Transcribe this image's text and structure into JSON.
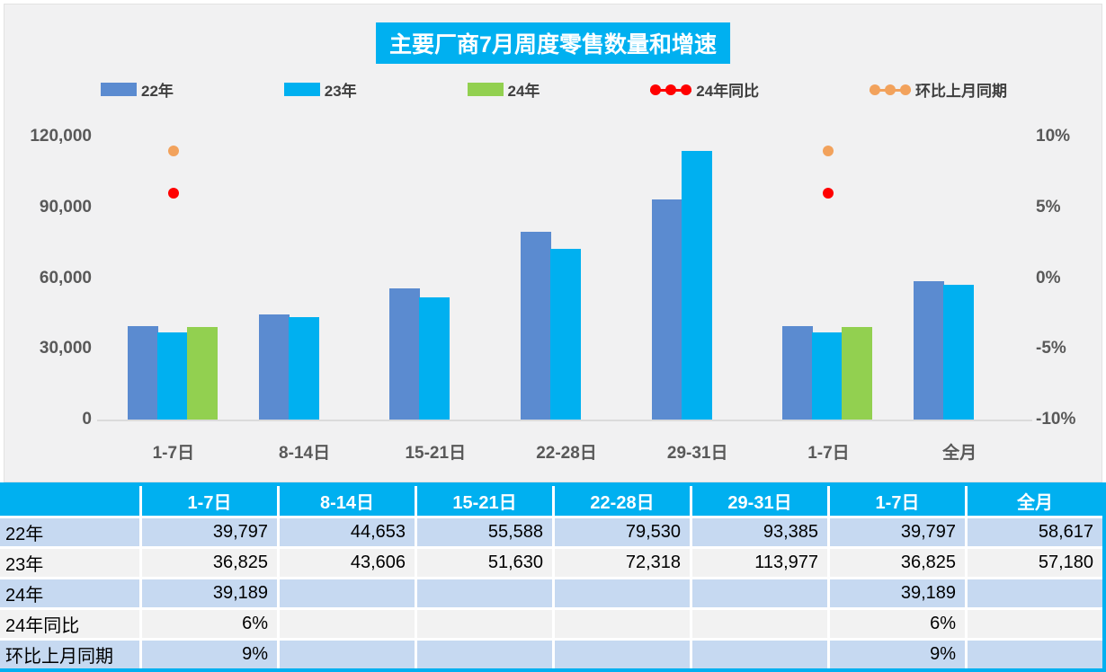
{
  "chart_data": {
    "type": "bar",
    "title": "主要厂商7月周度零售数量和增速",
    "title_bg": "#00B0F0",
    "plot_bg": "#F1F1F2",
    "grid": "off",
    "legend_position": "top",
    "categories": [
      "1-7日",
      "8-14日",
      "15-21日",
      "22-28日",
      "29-31日",
      "1-7日",
      "全月"
    ],
    "series": [
      {
        "name": "22年",
        "type": "bar",
        "axis": "left",
        "color": "#5B8BD0",
        "values": [
          39797,
          44653,
          55588,
          79530,
          93385,
          39797,
          58617
        ]
      },
      {
        "name": "23年",
        "type": "bar",
        "axis": "left",
        "color": "#00B0F0",
        "values": [
          36825,
          43606,
          51630,
          72318,
          113977,
          36825,
          57180
        ]
      },
      {
        "name": "24年",
        "type": "bar",
        "axis": "left",
        "color": "#92D050",
        "values": [
          39189,
          null,
          null,
          null,
          null,
          39189,
          null
        ]
      },
      {
        "name": "24年同比",
        "type": "scatter",
        "axis": "right",
        "color": "#FF0000",
        "unit": "%",
        "values": [
          6,
          null,
          null,
          null,
          null,
          6,
          null
        ]
      },
      {
        "name": "环比上月同期",
        "type": "scatter",
        "axis": "right",
        "color": "#F2A25C",
        "unit": "%",
        "values": [
          9,
          null,
          null,
          null,
          null,
          9,
          null
        ]
      }
    ],
    "left_axis": {
      "min": 0,
      "max": 120000,
      "ticks_top_to_bottom": [
        "120,000",
        "90,000",
        "60,000",
        "30,000",
        "0"
      ]
    },
    "right_axis": {
      "min": -10,
      "max": 10,
      "ticks_top_to_bottom": [
        "10%",
        "5%",
        "0%",
        "-5%",
        "-10%"
      ]
    }
  },
  "table": {
    "columns": [
      "",
      "1-7日",
      "8-14日",
      "15-21日",
      "22-28日",
      "29-31日",
      "1-7日",
      "全月"
    ],
    "rows": [
      {
        "label": "22年",
        "values": [
          "39,797",
          "44,653",
          "55,588",
          "79,530",
          "93,385",
          "39,797",
          "58,617"
        ]
      },
      {
        "label": "23年",
        "values": [
          "36,825",
          "43,606",
          "51,630",
          "72,318",
          "113,977",
          "36,825",
          "57,180"
        ]
      },
      {
        "label": "24年",
        "values": [
          "39,189",
          "",
          "",
          "",
          "",
          "39,189",
          ""
        ]
      },
      {
        "label": "24年同比",
        "values": [
          "6%",
          "",
          "",
          "",
          "",
          "6%",
          ""
        ]
      },
      {
        "label": "环比上月同期",
        "values": [
          "9%",
          "",
          "",
          "",
          "",
          "9%",
          ""
        ]
      }
    ],
    "colors": {
      "header_bg": "#00B0F0",
      "row_alt_blue": "#C6D9F1",
      "row_alt_gray": "#F2F2F2",
      "header_text": "#FFFFFF"
    }
  }
}
